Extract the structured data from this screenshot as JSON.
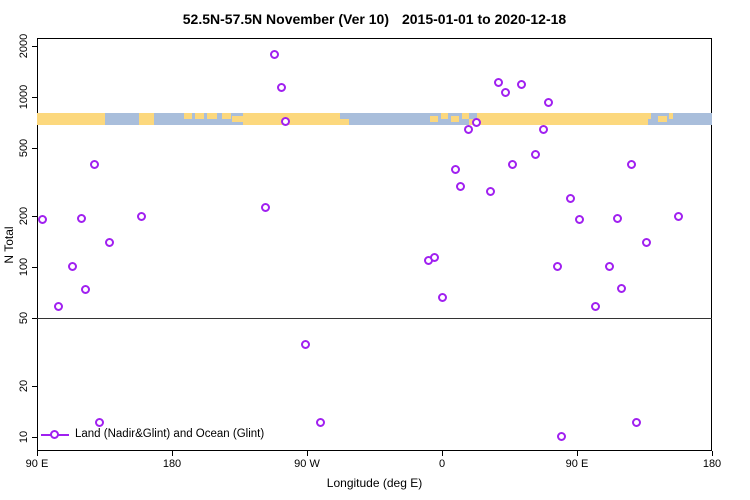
{
  "chart_data": {
    "type": "scatter",
    "title_main": "52.5N-57.5N November (Ver 10)",
    "title_dates": "2015-01-01 to 2020-12-18",
    "xlabel": "Longitude (deg E)",
    "ylabel": "N Total",
    "x_axis": {
      "tick_labels": [
        "90 E",
        "180",
        "90 W",
        "0",
        "90 E",
        "180"
      ],
      "tick_deg": [
        0,
        90,
        180,
        270,
        360,
        450
      ],
      "span_deg": 450,
      "note": "longitude axis wraps eastward: 90E to 180, 90W, 0, 90E, 180"
    },
    "y_axis": {
      "scale": "log",
      "ticks": [
        2000,
        1000,
        500,
        200,
        100,
        50,
        20,
        10
      ],
      "range": [
        10,
        2000
      ]
    },
    "hline_value": 50,
    "points": [
      [
        4.0,
        190
      ],
      [
        14.9,
        58
      ],
      [
        23.8,
        100
      ],
      [
        29.8,
        192
      ],
      [
        32.7,
        73
      ],
      [
        38.5,
        400
      ],
      [
        42.2,
        12
      ],
      [
        48.7,
        139
      ],
      [
        70.0,
        198
      ],
      [
        152.7,
        224
      ],
      [
        158.5,
        1780
      ],
      [
        163.3,
        1135
      ],
      [
        166.0,
        714
      ],
      [
        179.3,
        35
      ],
      [
        189.3,
        12
      ],
      [
        261.5,
        109
      ],
      [
        265.5,
        113
      ],
      [
        270.9,
        66
      ],
      [
        279.3,
        372
      ],
      [
        282.5,
        295
      ],
      [
        287.8,
        641
      ],
      [
        293.1,
        708
      ],
      [
        302.7,
        277
      ],
      [
        307.8,
        1216
      ],
      [
        312.9,
        1054
      ],
      [
        317.1,
        400
      ],
      [
        323.1,
        1180
      ],
      [
        332.5,
        457
      ],
      [
        337.8,
        640
      ],
      [
        341.5,
        920
      ],
      [
        347.5,
        100
      ],
      [
        350.2,
        10
      ],
      [
        356.0,
        253
      ],
      [
        361.8,
        190
      ],
      [
        372.5,
        58
      ],
      [
        381.8,
        100
      ],
      [
        387.5,
        192
      ],
      [
        390.2,
        74
      ],
      [
        396.5,
        400
      ],
      [
        400.0,
        12
      ],
      [
        406.5,
        139
      ],
      [
        428.0,
        198
      ]
    ],
    "marker_color": "#A020F0",
    "map_band": {
      "ocean_color": "#A9BEDB",
      "land_color": "#FCD87D",
      "land_segments_deg": [
        [
          0,
          45
        ],
        [
          68,
          78
        ],
        [
          137,
          202
        ],
        [
          293,
          407
        ]
      ],
      "land_patches_deg": [
        [
          98,
          103,
          "top"
        ],
        [
          105,
          111,
          "top"
        ],
        [
          113,
          120,
          "top"
        ],
        [
          123,
          129,
          "top"
        ],
        [
          130,
          137,
          "mid"
        ],
        [
          202,
          208,
          "bottom"
        ],
        [
          262,
          267,
          "mid"
        ],
        [
          269,
          274,
          "top"
        ],
        [
          276,
          281,
          "mid"
        ],
        [
          283,
          288,
          "top"
        ],
        [
          288,
          293,
          "bottom"
        ],
        [
          407,
          409,
          "top"
        ],
        [
          414,
          420,
          "mid"
        ],
        [
          421,
          424,
          "top"
        ]
      ]
    },
    "legend": {
      "label": "Land (Nadir&Glint) and Ocean (Glint)",
      "marker_color": "#A020F0"
    }
  }
}
